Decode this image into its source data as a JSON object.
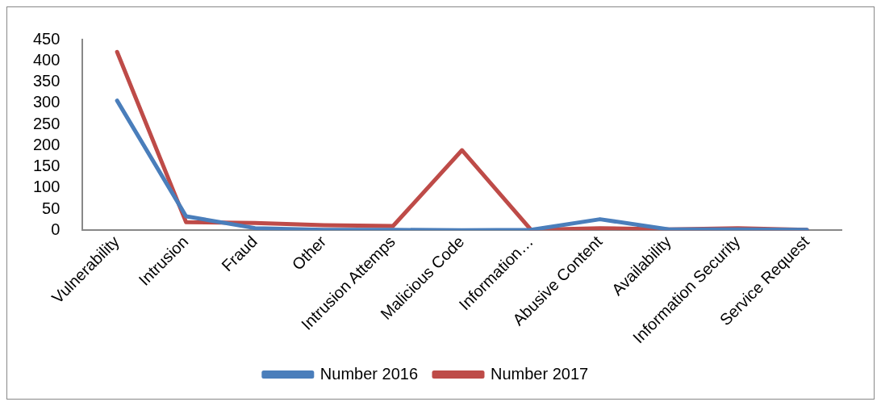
{
  "chart_data": {
    "type": "line",
    "categories": [
      "Vulnerability",
      "Intrusion",
      "Fraud",
      "Other",
      "Intrusion Attemps",
      "Malicious Code",
      "Information…",
      "Abusive Content",
      "Availability",
      "Information Security",
      "Service Request"
    ],
    "series": [
      {
        "name": "Number 2016",
        "color": "#4a7ebb",
        "values": [
          306,
          33,
          5,
          1,
          1,
          0,
          1,
          26,
          2,
          2,
          1
        ]
      },
      {
        "name": "Number 2017",
        "color": "#be4b48",
        "values": [
          421,
          19,
          17,
          12,
          10,
          189,
          1,
          5,
          2,
          5,
          1
        ]
      }
    ],
    "ylim": [
      0,
      450
    ],
    "yticks": [
      0,
      50,
      100,
      150,
      200,
      250,
      300,
      350,
      400,
      450
    ],
    "grid": false,
    "legend": "bottom",
    "marker": "none",
    "line_style": "solid"
  }
}
